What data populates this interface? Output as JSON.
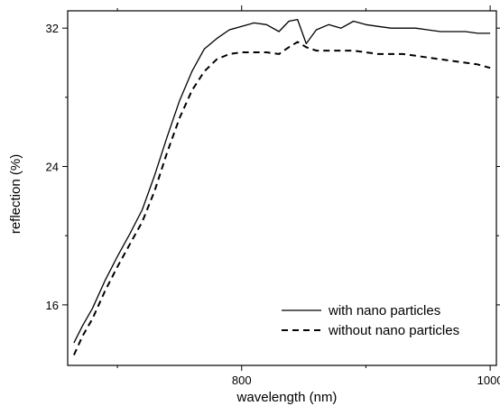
{
  "chart_data": {
    "type": "line",
    "xlabel": "wavelength (nm)",
    "ylabel": "reflection (%)",
    "xlim": [
      660,
      1005
    ],
    "ylim": [
      12.5,
      33
    ],
    "x_ticks": [
      800,
      1000
    ],
    "x_tick_labels": [
      "800",
      "1000"
    ],
    "x_minor_ticks": [
      700,
      900
    ],
    "y_ticks": [
      16,
      24,
      32
    ],
    "y_tick_labels": [
      "16",
      "24",
      "32"
    ],
    "y_minor_ticks": [
      20,
      28
    ],
    "grid": false,
    "legend_position": "bottom-right",
    "series": [
      {
        "name": "with nano particles",
        "style": "solid",
        "color": "#000000",
        "x": [
          665,
          672,
          680,
          690,
          700,
          710,
          720,
          730,
          740,
          750,
          760,
          770,
          780,
          790,
          800,
          810,
          820,
          830,
          838,
          845,
          852,
          860,
          870,
          880,
          890,
          900,
          910,
          920,
          930,
          940,
          950,
          960,
          970,
          980,
          990,
          1000
        ],
        "y": [
          13.8,
          14.8,
          15.8,
          17.4,
          18.8,
          20.1,
          21.5,
          23.5,
          25.7,
          27.8,
          29.5,
          30.8,
          31.4,
          31.9,
          32.1,
          32.3,
          32.2,
          31.8,
          32.4,
          32.5,
          31.1,
          31.9,
          32.2,
          32.0,
          32.4,
          32.2,
          32.1,
          32.0,
          32.0,
          32.0,
          31.9,
          31.8,
          31.8,
          31.8,
          31.7,
          31.7
        ]
      },
      {
        "name": "without nano particles",
        "style": "dashed",
        "color": "#000000",
        "x": [
          665,
          672,
          680,
          690,
          700,
          710,
          720,
          730,
          740,
          750,
          760,
          770,
          780,
          790,
          800,
          810,
          820,
          830,
          838,
          845,
          852,
          860,
          870,
          880,
          890,
          900,
          910,
          920,
          930,
          940,
          950,
          960,
          970,
          980,
          990,
          1000
        ],
        "y": [
          13.1,
          14.2,
          15.2,
          16.8,
          18.2,
          19.5,
          20.8,
          22.6,
          24.8,
          26.8,
          28.4,
          29.5,
          30.2,
          30.5,
          30.6,
          30.6,
          30.6,
          30.5,
          30.9,
          31.2,
          30.9,
          30.7,
          30.7,
          30.7,
          30.7,
          30.6,
          30.5,
          30.5,
          30.5,
          30.4,
          30.3,
          30.2,
          30.1,
          30.0,
          29.9,
          29.7
        ]
      }
    ]
  }
}
